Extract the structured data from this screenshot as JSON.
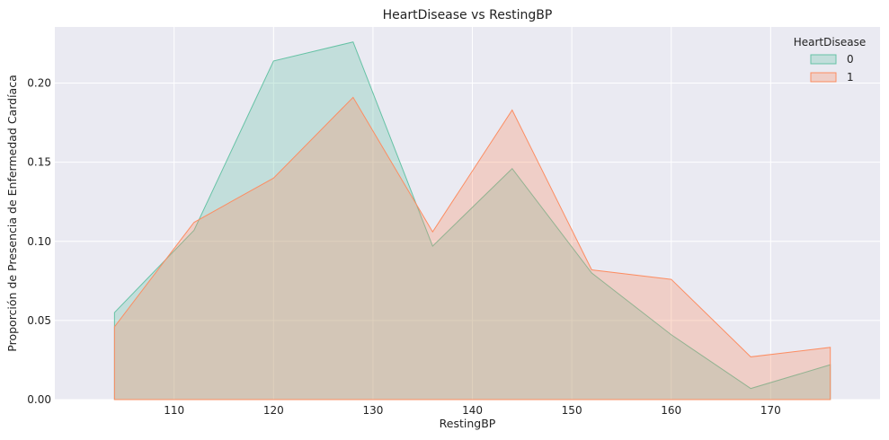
{
  "chart_data": {
    "type": "area",
    "title": "HeartDisease vs RestingBP",
    "xlabel": "RestingBP",
    "ylabel": "Proporción de Presencia de Enfermedad Cardíaca",
    "xlim": [
      98,
      181
    ],
    "ylim": [
      0,
      0.2355
    ],
    "xticks": [
      110,
      120,
      130,
      140,
      150,
      160,
      170
    ],
    "yticks": [
      0.0,
      0.05,
      0.1,
      0.15,
      0.2
    ],
    "ytick_labels": [
      "0.00",
      "0.05",
      "0.10",
      "0.15",
      "0.20"
    ],
    "grid": true,
    "legend": {
      "title": "HeartDisease",
      "position": "top-right"
    },
    "x": [
      104,
      112,
      120,
      128,
      136,
      144,
      152,
      160,
      168,
      176
    ],
    "series": [
      {
        "name": "0",
        "color": "#66c2a5",
        "values": [
          0.055,
          0.107,
          0.214,
          0.226,
          0.097,
          0.146,
          0.08,
          0.041,
          0.007,
          0.022
        ]
      },
      {
        "name": "1",
        "color": "#fc8d62",
        "values": [
          0.046,
          0.112,
          0.14,
          0.191,
          0.106,
          0.183,
          0.082,
          0.076,
          0.027,
          0.033
        ]
      }
    ]
  }
}
